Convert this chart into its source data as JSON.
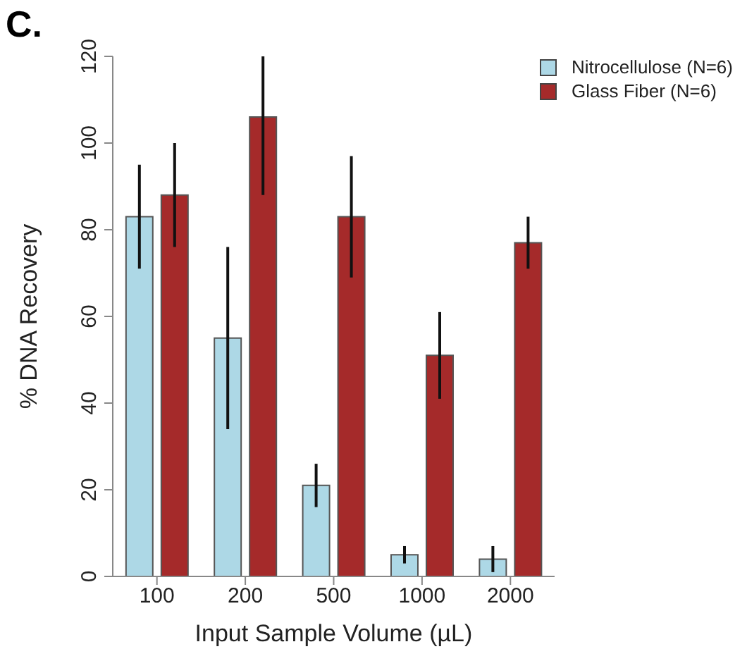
{
  "chart_data": {
    "type": "bar",
    "title": "C.",
    "xlabel": "Input Sample Volume (µL)",
    "ylabel": "% DNA Recovery",
    "categories": [
      "100",
      "200",
      "500",
      "1000",
      "2000"
    ],
    "series": [
      {
        "name": "Nitrocellulose (N=6)",
        "color": "#add8e6",
        "values": [
          83,
          55,
          21,
          5,
          4
        ],
        "errors": [
          12,
          21,
          5,
          2,
          3
        ]
      },
      {
        "name": "Glass Fiber (N=6)",
        "color": "#a52a2a",
        "values": [
          88,
          106,
          83,
          51,
          77
        ],
        "errors": [
          12,
          [
            88,
            120
          ],
          14,
          10,
          6
        ]
      }
    ],
    "ylim": [
      0,
      120
    ],
    "yticks": [
      0,
      20,
      40,
      60,
      80,
      100,
      120
    ],
    "grid": false,
    "legend": "top right"
  }
}
